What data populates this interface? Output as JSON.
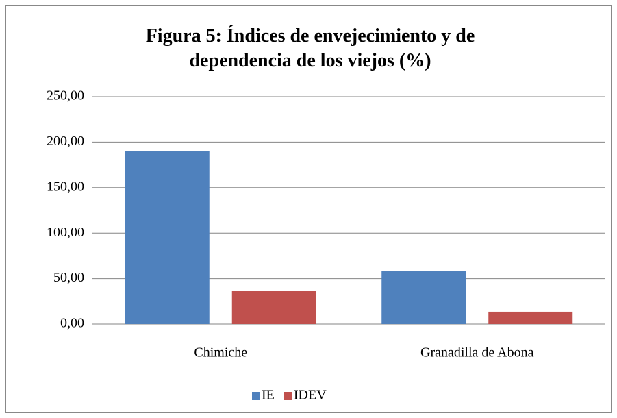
{
  "chart_data": {
    "type": "bar",
    "title": "Figura 5: Índices de envejecimiento y de dependencia de los viejos (%)",
    "categories": [
      "Chimiche",
      "Granadilla de Abona"
    ],
    "series": [
      {
        "name": "IE",
        "color": "#4f81bd",
        "values": [
          190.5,
          58
        ]
      },
      {
        "name": "IDEV",
        "color": "#c0504d",
        "values": [
          36.9,
          13.6
        ]
      }
    ],
    "ylim": [
      0,
      250
    ],
    "yticks": [
      {
        "value": 0,
        "label": "0,00"
      },
      {
        "value": 50,
        "label": "50,00"
      },
      {
        "value": 100,
        "label": "100,00"
      },
      {
        "value": 150,
        "label": "150,00"
      },
      {
        "value": 200,
        "label": "200,00"
      },
      {
        "value": 250,
        "label": "250,00"
      }
    ],
    "grid": true,
    "legend": "bottom"
  }
}
